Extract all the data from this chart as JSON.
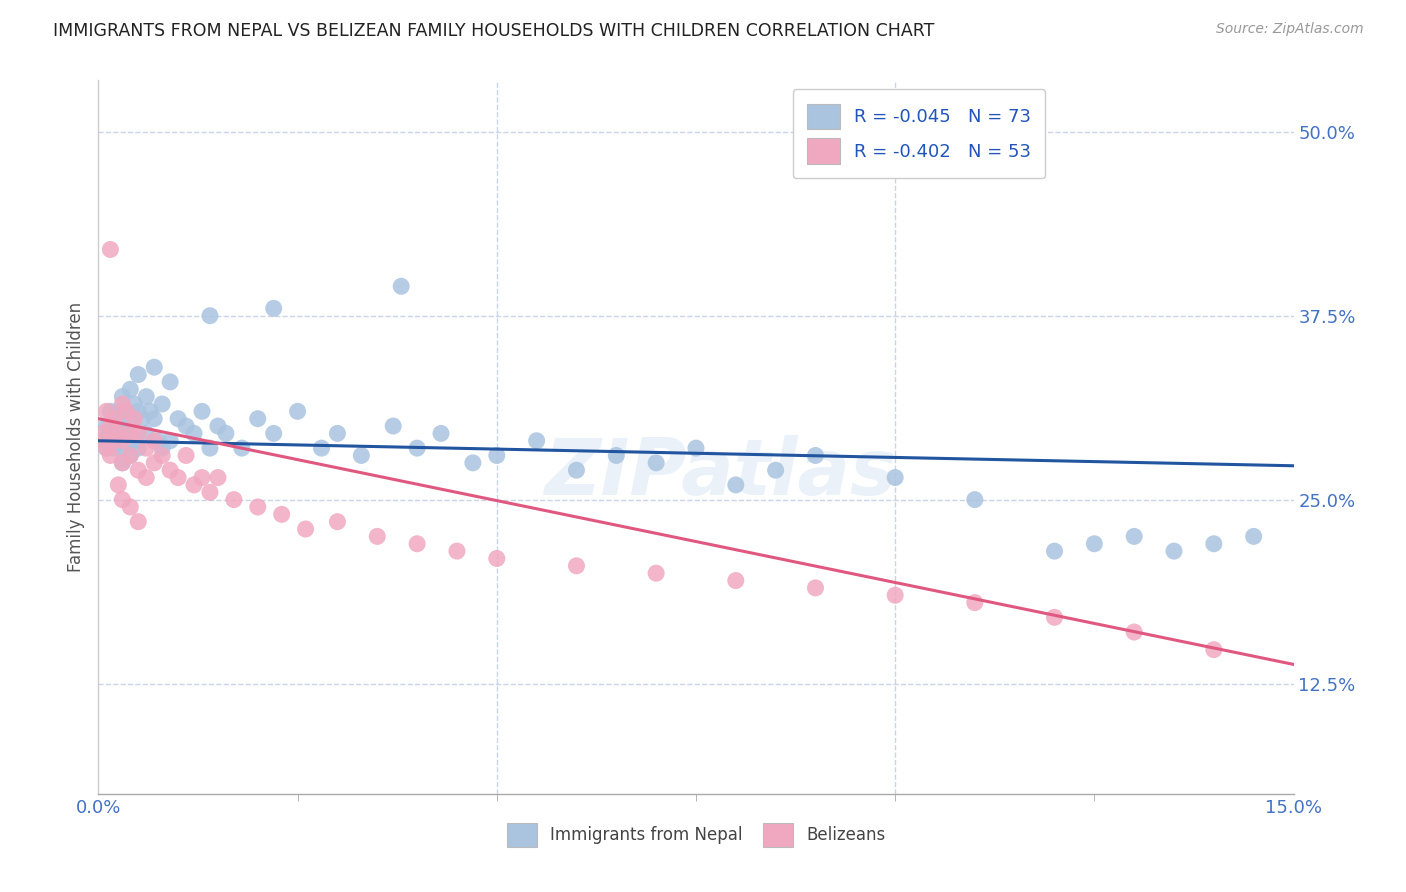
{
  "title": "IMMIGRANTS FROM NEPAL VS BELIZEAN FAMILY HOUSEHOLDS WITH CHILDREN CORRELATION CHART",
  "source": "Source: ZipAtlas.com",
  "ylabel": "Family Households with Children",
  "xmin": 0.0,
  "xmax": 0.15,
  "ymin": 0.05,
  "ymax": 0.535,
  "legend_blue_R": "R = -0.045",
  "legend_blue_N": "N = 73",
  "legend_pink_R": "R = -0.402",
  "legend_pink_N": "N = 53",
  "blue_color": "#aac4e0",
  "pink_color": "#f0a8c0",
  "blue_line_color": "#2255a0",
  "pink_line_color": "#e05880",
  "legend_text_color": "#2255bb",
  "background_color": "#ffffff",
  "grid_color": "#c8d4e8",
  "nepal_line_y0": 0.29,
  "nepal_line_y1": 0.273,
  "belize_line_y0": 0.305,
  "belize_line_y1": 0.138,
  "nepal_x": [
    0.0005,
    0.001,
    0.001,
    0.0015,
    0.0015,
    0.002,
    0.002,
    0.002,
    0.0025,
    0.0025,
    0.003,
    0.003,
    0.003,
    0.003,
    0.0035,
    0.0035,
    0.004,
    0.004,
    0.004,
    0.0045,
    0.0045,
    0.005,
    0.005,
    0.005,
    0.0055,
    0.006,
    0.006,
    0.0065,
    0.007,
    0.007,
    0.0075,
    0.008,
    0.008,
    0.009,
    0.009,
    0.01,
    0.011,
    0.012,
    0.013,
    0.014,
    0.015,
    0.016,
    0.018,
    0.02,
    0.022,
    0.025,
    0.028,
    0.03,
    0.033,
    0.037,
    0.04,
    0.043,
    0.047,
    0.05,
    0.055,
    0.06,
    0.065,
    0.07,
    0.075,
    0.08,
    0.085,
    0.09,
    0.1,
    0.11,
    0.12,
    0.125,
    0.13,
    0.135,
    0.14,
    0.145,
    0.014,
    0.022,
    0.038
  ],
  "nepal_y": [
    0.29,
    0.3,
    0.285,
    0.295,
    0.31,
    0.305,
    0.29,
    0.285,
    0.3,
    0.31,
    0.32,
    0.295,
    0.285,
    0.275,
    0.31,
    0.295,
    0.325,
    0.305,
    0.28,
    0.315,
    0.29,
    0.335,
    0.31,
    0.285,
    0.305,
    0.32,
    0.295,
    0.31,
    0.34,
    0.305,
    0.29,
    0.315,
    0.285,
    0.33,
    0.29,
    0.305,
    0.3,
    0.295,
    0.31,
    0.285,
    0.3,
    0.295,
    0.285,
    0.305,
    0.295,
    0.31,
    0.285,
    0.295,
    0.28,
    0.3,
    0.285,
    0.295,
    0.275,
    0.28,
    0.29,
    0.27,
    0.28,
    0.275,
    0.285,
    0.26,
    0.27,
    0.28,
    0.265,
    0.25,
    0.215,
    0.22,
    0.225,
    0.215,
    0.22,
    0.225,
    0.375,
    0.38,
    0.395
  ],
  "belize_x": [
    0.0005,
    0.001,
    0.001,
    0.0015,
    0.0015,
    0.002,
    0.002,
    0.0025,
    0.003,
    0.003,
    0.003,
    0.0035,
    0.004,
    0.004,
    0.0045,
    0.005,
    0.005,
    0.006,
    0.006,
    0.007,
    0.007,
    0.008,
    0.009,
    0.01,
    0.011,
    0.012,
    0.013,
    0.014,
    0.015,
    0.017,
    0.02,
    0.023,
    0.026,
    0.03,
    0.035,
    0.04,
    0.045,
    0.05,
    0.06,
    0.07,
    0.08,
    0.09,
    0.1,
    0.11,
    0.12,
    0.13,
    0.14,
    0.0008,
    0.0015,
    0.0025,
    0.003,
    0.004,
    0.005
  ],
  "belize_y": [
    0.295,
    0.31,
    0.285,
    0.42,
    0.3,
    0.305,
    0.29,
    0.295,
    0.315,
    0.29,
    0.275,
    0.31,
    0.295,
    0.28,
    0.305,
    0.295,
    0.27,
    0.285,
    0.265,
    0.29,
    0.275,
    0.28,
    0.27,
    0.265,
    0.28,
    0.26,
    0.265,
    0.255,
    0.265,
    0.25,
    0.245,
    0.24,
    0.23,
    0.235,
    0.225,
    0.22,
    0.215,
    0.21,
    0.205,
    0.2,
    0.195,
    0.19,
    0.185,
    0.18,
    0.17,
    0.16,
    0.148,
    0.29,
    0.28,
    0.26,
    0.25,
    0.245,
    0.235
  ]
}
